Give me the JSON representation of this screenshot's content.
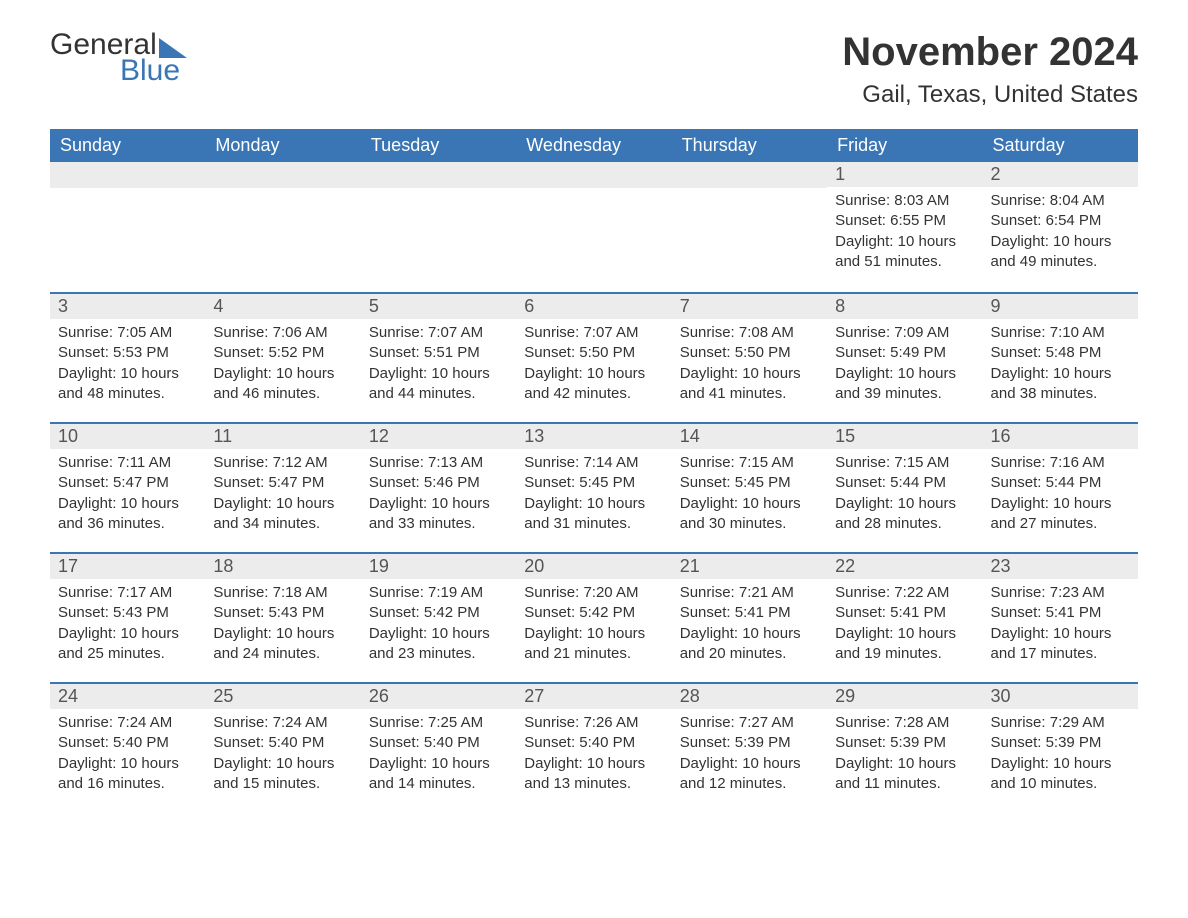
{
  "logo": {
    "line1": "General",
    "line2": "Blue"
  },
  "title": "November 2024",
  "location": "Gail, Texas, United States",
  "colors": {
    "header_bg": "#3a76b5",
    "header_text": "#ffffff",
    "daynum_bg": "#ececec",
    "border": "#3a76b5",
    "text": "#333333"
  },
  "weekdays": [
    "Sunday",
    "Monday",
    "Tuesday",
    "Wednesday",
    "Thursday",
    "Friday",
    "Saturday"
  ],
  "weeks": [
    [
      null,
      null,
      null,
      null,
      null,
      {
        "d": "1",
        "sr": "Sunrise: 8:03 AM",
        "ss": "Sunset: 6:55 PM",
        "dl": "Daylight: 10 hours and 51 minutes."
      },
      {
        "d": "2",
        "sr": "Sunrise: 8:04 AM",
        "ss": "Sunset: 6:54 PM",
        "dl": "Daylight: 10 hours and 49 minutes."
      }
    ],
    [
      {
        "d": "3",
        "sr": "Sunrise: 7:05 AM",
        "ss": "Sunset: 5:53 PM",
        "dl": "Daylight: 10 hours and 48 minutes."
      },
      {
        "d": "4",
        "sr": "Sunrise: 7:06 AM",
        "ss": "Sunset: 5:52 PM",
        "dl": "Daylight: 10 hours and 46 minutes."
      },
      {
        "d": "5",
        "sr": "Sunrise: 7:07 AM",
        "ss": "Sunset: 5:51 PM",
        "dl": "Daylight: 10 hours and 44 minutes."
      },
      {
        "d": "6",
        "sr": "Sunrise: 7:07 AM",
        "ss": "Sunset: 5:50 PM",
        "dl": "Daylight: 10 hours and 42 minutes."
      },
      {
        "d": "7",
        "sr": "Sunrise: 7:08 AM",
        "ss": "Sunset: 5:50 PM",
        "dl": "Daylight: 10 hours and 41 minutes."
      },
      {
        "d": "8",
        "sr": "Sunrise: 7:09 AM",
        "ss": "Sunset: 5:49 PM",
        "dl": "Daylight: 10 hours and 39 minutes."
      },
      {
        "d": "9",
        "sr": "Sunrise: 7:10 AM",
        "ss": "Sunset: 5:48 PM",
        "dl": "Daylight: 10 hours and 38 minutes."
      }
    ],
    [
      {
        "d": "10",
        "sr": "Sunrise: 7:11 AM",
        "ss": "Sunset: 5:47 PM",
        "dl": "Daylight: 10 hours and 36 minutes."
      },
      {
        "d": "11",
        "sr": "Sunrise: 7:12 AM",
        "ss": "Sunset: 5:47 PM",
        "dl": "Daylight: 10 hours and 34 minutes."
      },
      {
        "d": "12",
        "sr": "Sunrise: 7:13 AM",
        "ss": "Sunset: 5:46 PM",
        "dl": "Daylight: 10 hours and 33 minutes."
      },
      {
        "d": "13",
        "sr": "Sunrise: 7:14 AM",
        "ss": "Sunset: 5:45 PM",
        "dl": "Daylight: 10 hours and 31 minutes."
      },
      {
        "d": "14",
        "sr": "Sunrise: 7:15 AM",
        "ss": "Sunset: 5:45 PM",
        "dl": "Daylight: 10 hours and 30 minutes."
      },
      {
        "d": "15",
        "sr": "Sunrise: 7:15 AM",
        "ss": "Sunset: 5:44 PM",
        "dl": "Daylight: 10 hours and 28 minutes."
      },
      {
        "d": "16",
        "sr": "Sunrise: 7:16 AM",
        "ss": "Sunset: 5:44 PM",
        "dl": "Daylight: 10 hours and 27 minutes."
      }
    ],
    [
      {
        "d": "17",
        "sr": "Sunrise: 7:17 AM",
        "ss": "Sunset: 5:43 PM",
        "dl": "Daylight: 10 hours and 25 minutes."
      },
      {
        "d": "18",
        "sr": "Sunrise: 7:18 AM",
        "ss": "Sunset: 5:43 PM",
        "dl": "Daylight: 10 hours and 24 minutes."
      },
      {
        "d": "19",
        "sr": "Sunrise: 7:19 AM",
        "ss": "Sunset: 5:42 PM",
        "dl": "Daylight: 10 hours and 23 minutes."
      },
      {
        "d": "20",
        "sr": "Sunrise: 7:20 AM",
        "ss": "Sunset: 5:42 PM",
        "dl": "Daylight: 10 hours and 21 minutes."
      },
      {
        "d": "21",
        "sr": "Sunrise: 7:21 AM",
        "ss": "Sunset: 5:41 PM",
        "dl": "Daylight: 10 hours and 20 minutes."
      },
      {
        "d": "22",
        "sr": "Sunrise: 7:22 AM",
        "ss": "Sunset: 5:41 PM",
        "dl": "Daylight: 10 hours and 19 minutes."
      },
      {
        "d": "23",
        "sr": "Sunrise: 7:23 AM",
        "ss": "Sunset: 5:41 PM",
        "dl": "Daylight: 10 hours and 17 minutes."
      }
    ],
    [
      {
        "d": "24",
        "sr": "Sunrise: 7:24 AM",
        "ss": "Sunset: 5:40 PM",
        "dl": "Daylight: 10 hours and 16 minutes."
      },
      {
        "d": "25",
        "sr": "Sunrise: 7:24 AM",
        "ss": "Sunset: 5:40 PM",
        "dl": "Daylight: 10 hours and 15 minutes."
      },
      {
        "d": "26",
        "sr": "Sunrise: 7:25 AM",
        "ss": "Sunset: 5:40 PM",
        "dl": "Daylight: 10 hours and 14 minutes."
      },
      {
        "d": "27",
        "sr": "Sunrise: 7:26 AM",
        "ss": "Sunset: 5:40 PM",
        "dl": "Daylight: 10 hours and 13 minutes."
      },
      {
        "d": "28",
        "sr": "Sunrise: 7:27 AM",
        "ss": "Sunset: 5:39 PM",
        "dl": "Daylight: 10 hours and 12 minutes."
      },
      {
        "d": "29",
        "sr": "Sunrise: 7:28 AM",
        "ss": "Sunset: 5:39 PM",
        "dl": "Daylight: 10 hours and 11 minutes."
      },
      {
        "d": "30",
        "sr": "Sunrise: 7:29 AM",
        "ss": "Sunset: 5:39 PM",
        "dl": "Daylight: 10 hours and 10 minutes."
      }
    ]
  ]
}
